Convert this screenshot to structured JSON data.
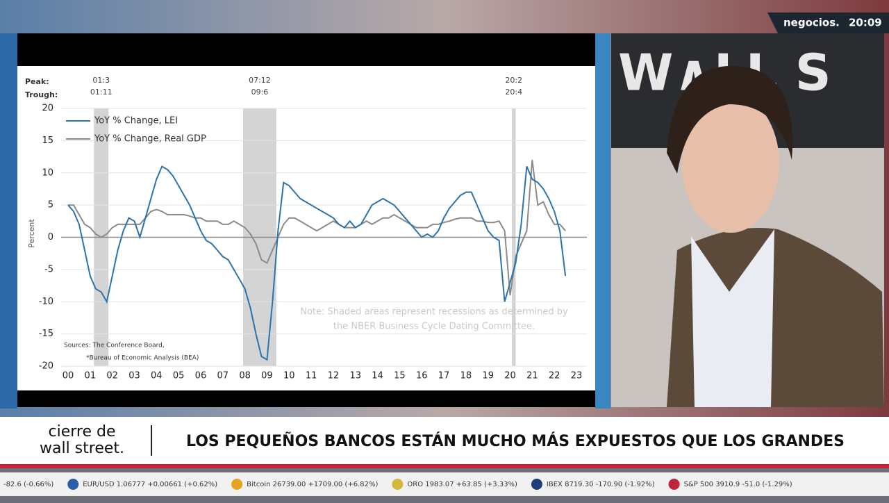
{
  "broadcast": {
    "logo": "negocios.",
    "time": "20:09",
    "program_line1": "cierre de",
    "program_line2": "wall street.",
    "headline": "LOS PEQUEÑOS BANCOS ESTÁN MUCHO MÁS EXPUESTOS QUE LOS GRANDES",
    "ticker": [
      "-82.6 (-0.66%)",
      "EUR/USD 1.06777 +0.00661 (+0.62%)",
      "Bitcoin 26739.00 +1709.00 (+6.82%)",
      "ORO 1983.07 +63.85 (+3.33%)",
      "IBEX 8719.30 -170.90 (-1.92%)",
      "S&P 500 3910.9 -51.0 (-1.29%)"
    ]
  },
  "chart_data": {
    "type": "line",
    "y_label": "Percent",
    "peak_label": "Peak:",
    "trough_label": "Trough:",
    "recessions": [
      {
        "peak": "01:3",
        "trough": "01:11",
        "start": 2001.17,
        "end": 2001.83
      },
      {
        "peak": "07:12",
        "trough": "09:6",
        "start": 2007.92,
        "end": 2009.42
      },
      {
        "peak": "20:2",
        "trough": "20:4",
        "start": 2020.08,
        "end": 2020.25
      }
    ],
    "note": [
      "Note: Shaded areas represent recessions as determined by",
      "the NBER Business Cycle Dating Committee."
    ],
    "sources": [
      "Sources: The Conference Board,",
      "*Bureau of Economic Analysis (BEA)"
    ],
    "x": [
      2000,
      2000.25,
      2000.5,
      2000.75,
      2001,
      2001.25,
      2001.5,
      2001.75,
      2002,
      2002.25,
      2002.5,
      2002.75,
      2003,
      2003.25,
      2003.5,
      2003.75,
      2004,
      2004.25,
      2004.5,
      2004.75,
      2005,
      2005.25,
      2005.5,
      2005.75,
      2006,
      2006.25,
      2006.5,
      2006.75,
      2007,
      2007.25,
      2007.5,
      2007.75,
      2008,
      2008.25,
      2008.5,
      2008.75,
      2009,
      2009.25,
      2009.5,
      2009.75,
      2010,
      2010.25,
      2010.5,
      2010.75,
      2011,
      2011.25,
      2011.5,
      2011.75,
      2012,
      2012.25,
      2012.5,
      2012.75,
      2013,
      2013.25,
      2013.5,
      2013.75,
      2014,
      2014.25,
      2014.5,
      2014.75,
      2015,
      2015.25,
      2015.5,
      2015.75,
      2016,
      2016.25,
      2016.5,
      2016.75,
      2017,
      2017.25,
      2017.5,
      2017.75,
      2018,
      2018.25,
      2018.5,
      2018.75,
      2019,
      2019.25,
      2019.5,
      2019.75,
      2020,
      2020.25,
      2020.5,
      2020.75,
      2021,
      2021.25,
      2021.5,
      2021.75,
      2022,
      2022.25,
      2022.5,
      2022.75,
      2023
    ],
    "series": [
      {
        "name": "YoY % Change, LEI",
        "color": "#2b73ad",
        "values": [
          5,
          4,
          2,
          -2,
          -6,
          -8,
          -8.5,
          -10,
          -6,
          -2,
          1,
          3,
          2.5,
          0,
          3,
          6,
          9,
          11,
          10.5,
          9.5,
          8,
          6.5,
          5,
          3,
          1,
          -0.5,
          -1,
          -2,
          -3,
          -3.5,
          -5,
          -6.5,
          -8,
          -11,
          -15,
          -18.5,
          -19,
          -10,
          1,
          8.5,
          8,
          7,
          6,
          5.5,
          5,
          4.5,
          4,
          3.5,
          3,
          2,
          1.5,
          2.5,
          1.5,
          2,
          3.5,
          5,
          5.5,
          6,
          5.5,
          5,
          4,
          3,
          2,
          1,
          0,
          0.5,
          0,
          1,
          3,
          4.5,
          5.5,
          6.5,
          7,
          7,
          5,
          3,
          1,
          0,
          -0.5,
          -10,
          -7,
          -4,
          2,
          11,
          9,
          8.5,
          7.5,
          6,
          4,
          1,
          -6,
          null,
          null
        ]
      },
      {
        "name": "YoY % Change, Real GDP",
        "color": "#8a8a8a",
        "values": [
          5,
          5,
          3.5,
          2,
          1.5,
          0.5,
          0,
          0.5,
          1.5,
          2,
          2,
          2,
          2,
          2,
          3,
          4,
          4.3,
          4,
          3.5,
          3.5,
          3.5,
          3.5,
          3.3,
          3,
          3,
          2.5,
          2.5,
          2.5,
          2,
          2,
          2.5,
          2,
          1.5,
          0.5,
          -1,
          -3.5,
          -4,
          -2,
          0,
          2,
          3,
          3,
          2.5,
          2,
          1.5,
          1,
          1.5,
          2,
          2.5,
          2,
          1.5,
          1.5,
          1.5,
          2,
          2.5,
          2,
          2.5,
          3,
          3,
          3.5,
          3,
          2.5,
          2,
          1.5,
          1.5,
          1.5,
          2,
          2,
          2.3,
          2.5,
          2.8,
          3,
          3,
          3,
          2.5,
          2.5,
          2.3,
          2.3,
          2.5,
          1,
          -9,
          -3,
          -1,
          1,
          12,
          5,
          5.5,
          3.5,
          2,
          2,
          1,
          null,
          null
        ]
      }
    ],
    "xlim": [
      1999.7,
      2023.5
    ],
    "ylim": [
      -20,
      20
    ],
    "yticks": [
      -20,
      -15,
      -10,
      -5,
      0,
      5,
      10,
      15,
      20
    ],
    "xticks": [
      {
        "value": 2000,
        "label": "00"
      },
      {
        "value": 2001,
        "label": "01"
      },
      {
        "value": 2002,
        "label": "02"
      },
      {
        "value": 2003,
        "label": "03"
      },
      {
        "value": 2004,
        "label": "04"
      },
      {
        "value": 2005,
        "label": "05"
      },
      {
        "value": 2006,
        "label": "06"
      },
      {
        "value": 2007,
        "label": "07"
      },
      {
        "value": 2008,
        "label": "08"
      },
      {
        "value": 2009,
        "label": "09"
      },
      {
        "value": 2010,
        "label": "10"
      },
      {
        "value": 2011,
        "label": "11"
      },
      {
        "value": 2012,
        "label": "12"
      },
      {
        "value": 2013,
        "label": "13"
      },
      {
        "value": 2014,
        "label": "14"
      },
      {
        "value": 2015,
        "label": "15"
      },
      {
        "value": 2016,
        "label": "16"
      },
      {
        "value": 2017,
        "label": "17"
      },
      {
        "value": 2018,
        "label": "18"
      },
      {
        "value": 2019,
        "label": "19"
      },
      {
        "value": 2020,
        "label": "20"
      },
      {
        "value": 2021,
        "label": "21"
      },
      {
        "value": 2022,
        "label": "22"
      },
      {
        "value": 2023,
        "label": "23"
      }
    ],
    "grid": true
  }
}
